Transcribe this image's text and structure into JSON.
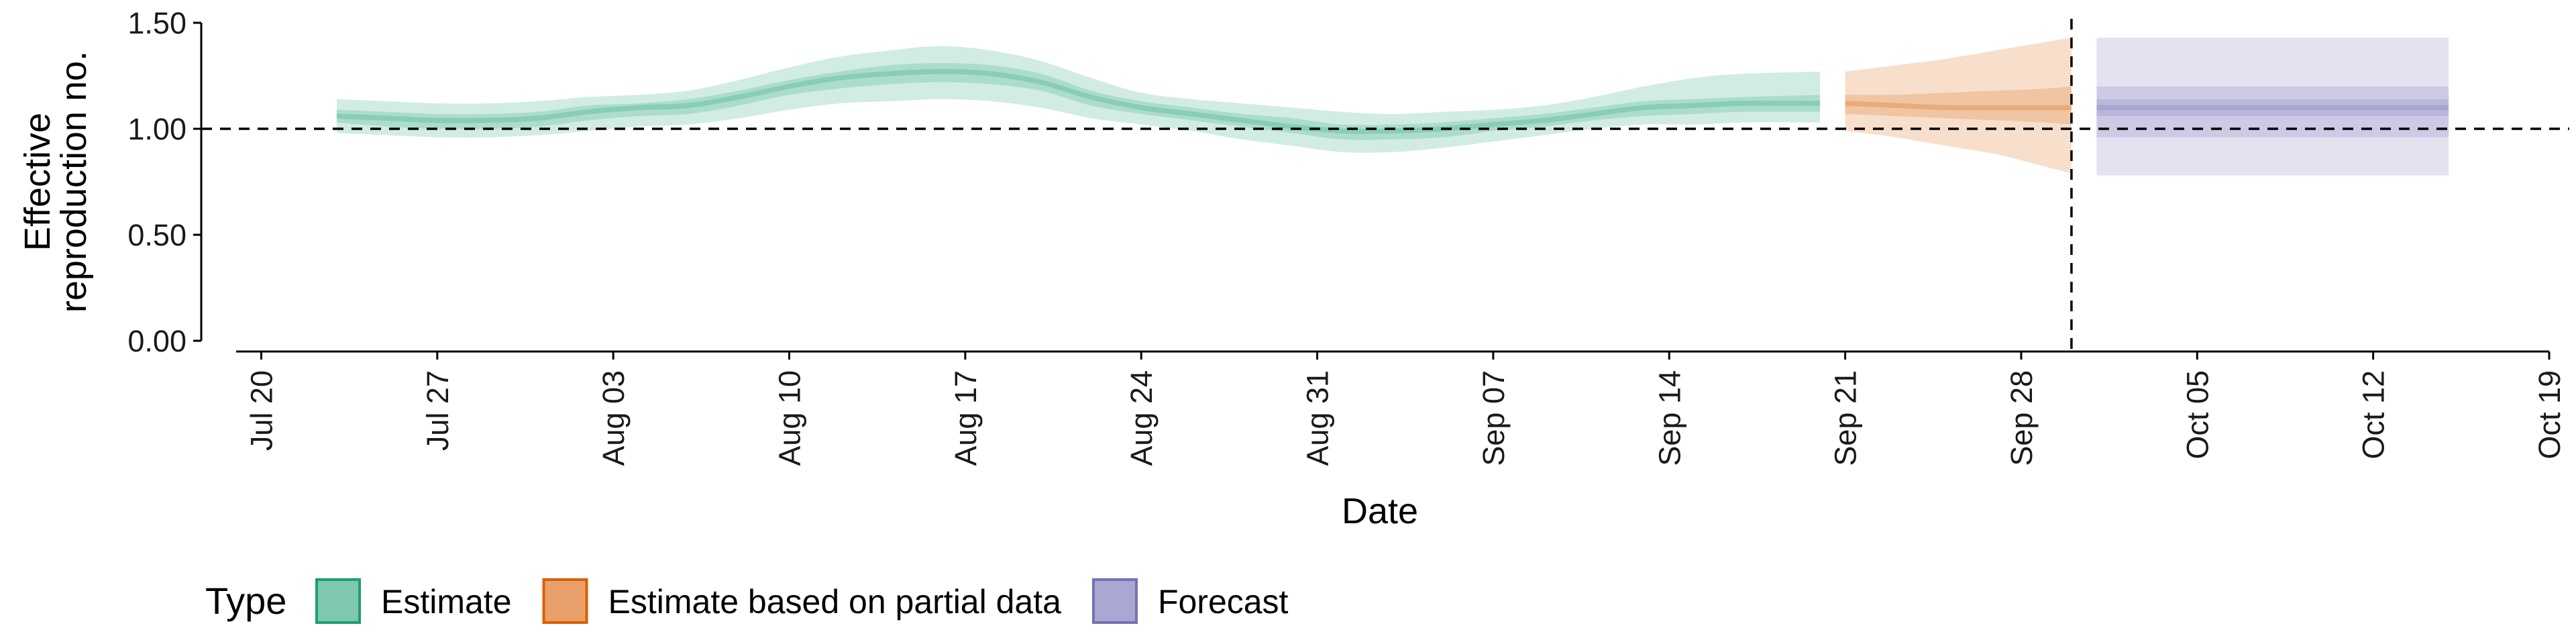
{
  "chart_data": {
    "type": "area",
    "title": "",
    "xlabel": "Date",
    "ylabel_lines": [
      "Effective",
      "reproduction no."
    ],
    "ylim": [
      0.0,
      1.5
    ],
    "yticks": [
      0.0,
      0.5,
      1.0,
      1.5
    ],
    "ytick_labels": [
      "0.00",
      "0.50",
      "1.00",
      "1.50"
    ],
    "xlim": [
      "2020-07-19",
      "2020-10-19"
    ],
    "xticks": [
      "2020-07-20",
      "2020-07-27",
      "2020-08-03",
      "2020-08-10",
      "2020-08-17",
      "2020-08-24",
      "2020-08-31",
      "2020-09-07",
      "2020-09-14",
      "2020-09-21",
      "2020-09-28",
      "2020-10-05",
      "2020-10-12",
      "2020-10-19"
    ],
    "xtick_labels": [
      "Jul 20",
      "Jul 27",
      "Aug 03",
      "Aug 10",
      "Aug 17",
      "Aug 24",
      "Aug 31",
      "Sep 07",
      "Sep 14",
      "Sep 21",
      "Sep 28",
      "Oct 05",
      "Oct 12",
      "Oct 19"
    ],
    "reference_line_y": 1.0,
    "reference_line_x": "2020-09-30",
    "legend": {
      "title": "Type",
      "position": "bottom-left",
      "entries": [
        {
          "label": "Estimate",
          "fill": "#7fc8ad",
          "stroke": "#1b9e77"
        },
        {
          "label": "Estimate based on partial data",
          "fill": "#eaa06a",
          "stroke": "#d95f02"
        },
        {
          "label": "Forecast",
          "fill": "#aaa8d2",
          "stroke": "#7570b3"
        }
      ]
    },
    "series": [
      {
        "name": "Estimate",
        "color": "#1b9e77",
        "points": [
          {
            "date": "2020-07-23",
            "median": 1.06,
            "low50": 1.03,
            "high50": 1.09,
            "low90": 0.98,
            "high90": 1.14
          },
          {
            "date": "2020-07-25",
            "median": 1.05,
            "low50": 1.01,
            "high50": 1.08,
            "low90": 0.97,
            "high90": 1.13
          },
          {
            "date": "2020-07-27",
            "median": 1.04,
            "low50": 1.0,
            "high50": 1.07,
            "low90": 0.96,
            "high90": 1.12
          },
          {
            "date": "2020-07-29",
            "median": 1.04,
            "low50": 1.0,
            "high50": 1.07,
            "low90": 0.96,
            "high90": 1.12
          },
          {
            "date": "2020-07-31",
            "median": 1.05,
            "low50": 1.01,
            "high50": 1.08,
            "low90": 0.97,
            "high90": 1.13
          },
          {
            "date": "2020-08-02",
            "median": 1.08,
            "low50": 1.04,
            "high50": 1.11,
            "low90": 0.99,
            "high90": 1.15
          },
          {
            "date": "2020-08-04",
            "median": 1.1,
            "low50": 1.06,
            "high50": 1.12,
            "low90": 1.01,
            "high90": 1.16
          },
          {
            "date": "2020-08-06",
            "median": 1.11,
            "low50": 1.07,
            "high50": 1.14,
            "low90": 1.02,
            "high90": 1.18
          },
          {
            "date": "2020-08-08",
            "median": 1.15,
            "low50": 1.11,
            "high50": 1.18,
            "low90": 1.05,
            "high90": 1.23
          },
          {
            "date": "2020-08-10",
            "median": 1.2,
            "low50": 1.16,
            "high50": 1.23,
            "low90": 1.09,
            "high90": 1.29
          },
          {
            "date": "2020-08-12",
            "median": 1.24,
            "low50": 1.19,
            "high50": 1.27,
            "low90": 1.12,
            "high90": 1.34
          },
          {
            "date": "2020-08-14",
            "median": 1.26,
            "low50": 1.21,
            "high50": 1.3,
            "low90": 1.13,
            "high90": 1.37
          },
          {
            "date": "2020-08-16",
            "median": 1.27,
            "low50": 1.22,
            "high50": 1.31,
            "low90": 1.14,
            "high90": 1.39
          },
          {
            "date": "2020-08-18",
            "median": 1.26,
            "low50": 1.21,
            "high50": 1.3,
            "low90": 1.13,
            "high90": 1.37
          },
          {
            "date": "2020-08-20",
            "median": 1.22,
            "low50": 1.18,
            "high50": 1.26,
            "low90": 1.1,
            "high90": 1.32
          },
          {
            "date": "2020-08-22",
            "median": 1.15,
            "low50": 1.11,
            "high50": 1.18,
            "low90": 1.05,
            "high90": 1.24
          },
          {
            "date": "2020-08-24",
            "median": 1.1,
            "low50": 1.07,
            "high50": 1.13,
            "low90": 1.02,
            "high90": 1.17
          },
          {
            "date": "2020-08-26",
            "median": 1.07,
            "low50": 1.04,
            "high50": 1.1,
            "low90": 0.99,
            "high90": 1.14
          },
          {
            "date": "2020-08-28",
            "median": 1.04,
            "low50": 1.01,
            "high50": 1.07,
            "low90": 0.95,
            "high90": 1.12
          },
          {
            "date": "2020-08-30",
            "median": 1.01,
            "low50": 0.98,
            "high50": 1.05,
            "low90": 0.92,
            "high90": 1.1
          },
          {
            "date": "2020-09-01",
            "median": 0.99,
            "low50": 0.95,
            "high50": 1.02,
            "low90": 0.89,
            "high90": 1.08
          },
          {
            "date": "2020-09-03",
            "median": 0.99,
            "low50": 0.95,
            "high50": 1.02,
            "low90": 0.89,
            "high90": 1.07
          },
          {
            "date": "2020-09-05",
            "median": 1.0,
            "low50": 0.96,
            "high50": 1.03,
            "low90": 0.91,
            "high90": 1.08
          },
          {
            "date": "2020-09-07",
            "median": 1.02,
            "low50": 0.99,
            "high50": 1.05,
            "low90": 0.94,
            "high90": 1.09
          },
          {
            "date": "2020-09-09",
            "median": 1.04,
            "low50": 1.01,
            "high50": 1.07,
            "low90": 0.97,
            "high90": 1.11
          },
          {
            "date": "2020-09-11",
            "median": 1.07,
            "low50": 1.04,
            "high50": 1.1,
            "low90": 1.0,
            "high90": 1.15
          },
          {
            "date": "2020-09-13",
            "median": 1.1,
            "low50": 1.06,
            "high50": 1.13,
            "low90": 1.02,
            "high90": 1.2
          },
          {
            "date": "2020-09-15",
            "median": 1.11,
            "low50": 1.07,
            "high50": 1.14,
            "low90": 1.02,
            "high90": 1.24
          },
          {
            "date": "2020-09-17",
            "median": 1.12,
            "low50": 1.08,
            "high50": 1.15,
            "low90": 1.03,
            "high90": 1.26
          },
          {
            "date": "2020-09-20",
            "median": 1.12,
            "low50": 1.08,
            "high50": 1.16,
            "low90": 1.03,
            "high90": 1.27
          }
        ]
      },
      {
        "name": "Estimate based on partial data",
        "color": "#d95f02",
        "points": [
          {
            "date": "2020-09-21",
            "median": 1.12,
            "low50": 1.07,
            "high50": 1.16,
            "low90": 0.99,
            "high90": 1.27
          },
          {
            "date": "2020-09-23",
            "median": 1.11,
            "low50": 1.06,
            "high50": 1.16,
            "low90": 0.96,
            "high90": 1.3
          },
          {
            "date": "2020-09-25",
            "median": 1.1,
            "low50": 1.05,
            "high50": 1.17,
            "low90": 0.92,
            "high90": 1.33
          },
          {
            "date": "2020-09-27",
            "median": 1.1,
            "low50": 1.04,
            "high50": 1.18,
            "low90": 0.88,
            "high90": 1.37
          },
          {
            "date": "2020-09-29",
            "median": 1.1,
            "low50": 1.03,
            "high50": 1.19,
            "low90": 0.82,
            "high90": 1.41
          },
          {
            "date": "2020-09-30",
            "median": 1.1,
            "low50": 1.02,
            "high50": 1.2,
            "low90": 0.79,
            "high90": 1.43
          }
        ]
      },
      {
        "name": "Forecast",
        "color": "#7570b3",
        "points": [
          {
            "date": "2020-10-01",
            "median": 1.1,
            "low50": 1.06,
            "high50": 1.14,
            "low90": 0.96,
            "high90": 1.2,
            "low95": 0.78,
            "high95": 1.43
          },
          {
            "date": "2020-10-15",
            "median": 1.1,
            "low50": 1.06,
            "high50": 1.14,
            "low90": 0.96,
            "high90": 1.2,
            "low95": 0.78,
            "high95": 1.43
          }
        ]
      }
    ]
  }
}
